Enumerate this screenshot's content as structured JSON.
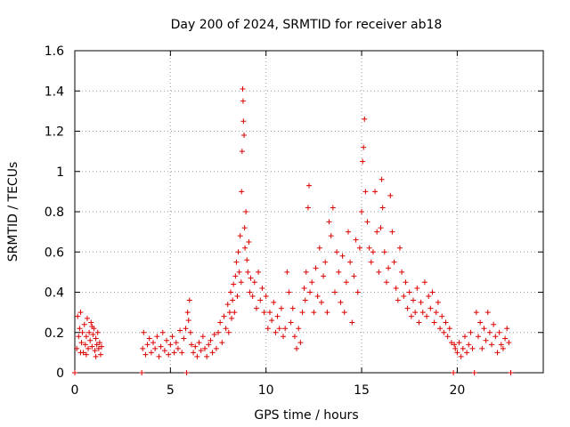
{
  "chart_data": {
    "type": "scatter",
    "title": "Day 200 of 2024, SRMTID for receiver ab18",
    "xlabel": "GPS time / hours",
    "ylabel": "SRMTID / TECUs",
    "xlim": [
      0,
      24.5
    ],
    "ylim": [
      0,
      1.6
    ],
    "grid": true,
    "marker": "plus",
    "colors": {
      "series": "#dd0000",
      "axis": "#000000",
      "grid": "#9a9a9a"
    },
    "x_ticks": [
      {
        "value": 0,
        "label": "0"
      },
      {
        "value": 5,
        "label": "5"
      },
      {
        "value": 10,
        "label": "10"
      },
      {
        "value": 15,
        "label": "15"
      },
      {
        "value": 20,
        "label": "20"
      }
    ],
    "y_ticks": [
      {
        "value": 0,
        "label": "0"
      },
      {
        "value": 0.2,
        "label": "0.2"
      },
      {
        "value": 0.4,
        "label": "0.4"
      },
      {
        "value": 0.6,
        "label": "0.6"
      },
      {
        "value": 0.8,
        "label": "0.8"
      },
      {
        "value": 1.0,
        "label": "1"
      },
      {
        "value": 1.2,
        "label": "1.2"
      },
      {
        "value": 1.4,
        "label": "1.4"
      },
      {
        "value": 1.6,
        "label": "1.6"
      }
    ],
    "series": [
      {
        "name": "SRMTID",
        "points": [
          [
            0.0,
            0.0
          ],
          [
            0.1,
            0.12
          ],
          [
            0.15,
            0.28
          ],
          [
            0.2,
            0.18
          ],
          [
            0.25,
            0.22
          ],
          [
            0.3,
            0.3
          ],
          [
            0.35,
            0.15
          ],
          [
            0.4,
            0.2
          ],
          [
            0.45,
            0.1
          ],
          [
            0.5,
            0.24
          ],
          [
            0.55,
            0.14
          ],
          [
            0.6,
            0.18
          ],
          [
            0.65,
            0.27
          ],
          [
            0.7,
            0.12
          ],
          [
            0.75,
            0.2
          ],
          [
            0.8,
            0.16
          ],
          [
            0.85,
            0.25
          ],
          [
            0.9,
            0.13
          ],
          [
            0.95,
            0.19
          ],
          [
            1.0,
            0.22
          ],
          [
            1.05,
            0.11
          ],
          [
            1.1,
            0.17
          ],
          [
            1.15,
            0.14
          ],
          [
            1.2,
            0.2
          ],
          [
            1.25,
            0.12
          ],
          [
            1.3,
            0.15
          ],
          [
            1.35,
            0.09
          ],
          [
            1.4,
            0.13
          ],
          [
            0.3,
            0.1
          ],
          [
            0.6,
            0.09
          ],
          [
            0.9,
            0.23
          ],
          [
            1.1,
            0.08
          ],
          [
            3.5,
            0.0
          ],
          [
            3.55,
            0.12
          ],
          [
            3.6,
            0.2
          ],
          [
            3.7,
            0.09
          ],
          [
            3.8,
            0.14
          ],
          [
            3.9,
            0.17
          ],
          [
            4.0,
            0.1
          ],
          [
            4.1,
            0.15
          ],
          [
            4.2,
            0.12
          ],
          [
            4.3,
            0.18
          ],
          [
            4.4,
            0.08
          ],
          [
            4.5,
            0.13
          ],
          [
            4.6,
            0.2
          ],
          [
            4.7,
            0.11
          ],
          [
            4.8,
            0.16
          ],
          [
            4.9,
            0.09
          ],
          [
            5.0,
            0.14
          ],
          [
            5.1,
            0.18
          ],
          [
            5.2,
            0.1
          ],
          [
            5.3,
            0.15
          ],
          [
            5.4,
            0.12
          ],
          [
            5.5,
            0.21
          ],
          [
            5.6,
            0.1
          ],
          [
            5.7,
            0.17
          ],
          [
            5.8,
            0.22
          ],
          [
            5.85,
            0.0
          ],
          [
            5.9,
            0.3
          ],
          [
            5.95,
            0.26
          ],
          [
            6.0,
            0.36
          ],
          [
            6.05,
            0.2
          ],
          [
            6.1,
            0.14
          ],
          [
            6.2,
            0.1
          ],
          [
            6.3,
            0.13
          ],
          [
            6.4,
            0.08
          ],
          [
            6.5,
            0.15
          ],
          [
            6.6,
            0.11
          ],
          [
            6.7,
            0.18
          ],
          [
            6.8,
            0.12
          ],
          [
            6.9,
            0.08
          ],
          [
            7.0,
            0.14
          ],
          [
            7.1,
            0.16
          ],
          [
            7.2,
            0.1
          ],
          [
            7.3,
            0.19
          ],
          [
            7.4,
            0.12
          ],
          [
            7.5,
            0.2
          ],
          [
            7.6,
            0.25
          ],
          [
            7.7,
            0.15
          ],
          [
            7.8,
            0.28
          ],
          [
            7.9,
            0.22
          ],
          [
            8.0,
            0.34
          ],
          [
            8.05,
            0.2
          ],
          [
            8.1,
            0.3
          ],
          [
            8.15,
            0.4
          ],
          [
            8.2,
            0.27
          ],
          [
            8.25,
            0.36
          ],
          [
            8.3,
            0.44
          ],
          [
            8.35,
            0.3
          ],
          [
            8.4,
            0.48
          ],
          [
            8.45,
            0.55
          ],
          [
            8.5,
            0.38
          ],
          [
            8.55,
            0.6
          ],
          [
            8.6,
            0.5
          ],
          [
            8.65,
            0.68
          ],
          [
            8.7,
            0.45
          ],
          [
            8.72,
            0.9
          ],
          [
            8.75,
            1.1
          ],
          [
            8.78,
            1.41
          ],
          [
            8.8,
            1.35
          ],
          [
            8.82,
            1.25
          ],
          [
            8.85,
            1.18
          ],
          [
            8.88,
            0.72
          ],
          [
            8.9,
            0.62
          ],
          [
            8.95,
            0.8
          ],
          [
            9.0,
            0.56
          ],
          [
            9.05,
            0.5
          ],
          [
            9.1,
            0.65
          ],
          [
            9.15,
            0.4
          ],
          [
            9.2,
            0.47
          ],
          [
            9.3,
            0.38
          ],
          [
            9.4,
            0.45
          ],
          [
            9.5,
            0.32
          ],
          [
            9.6,
            0.5
          ],
          [
            9.7,
            0.36
          ],
          [
            9.8,
            0.42
          ],
          [
            9.9,
            0.3
          ],
          [
            10.0,
            0.38
          ],
          [
            10.1,
            0.22
          ],
          [
            10.2,
            0.3
          ],
          [
            10.3,
            0.26
          ],
          [
            10.4,
            0.35
          ],
          [
            10.5,
            0.2
          ],
          [
            10.6,
            0.28
          ],
          [
            10.7,
            0.22
          ],
          [
            10.8,
            0.32
          ],
          [
            10.9,
            0.18
          ],
          [
            11.0,
            0.22
          ],
          [
            11.1,
            0.5
          ],
          [
            11.2,
            0.4
          ],
          [
            11.3,
            0.25
          ],
          [
            11.4,
            0.32
          ],
          [
            11.5,
            0.18
          ],
          [
            11.6,
            0.12
          ],
          [
            11.7,
            0.22
          ],
          [
            11.8,
            0.15
          ],
          [
            11.9,
            0.3
          ],
          [
            12.0,
            0.42
          ],
          [
            12.05,
            0.36
          ],
          [
            12.1,
            0.5
          ],
          [
            12.2,
            0.82
          ],
          [
            12.25,
            0.93
          ],
          [
            12.3,
            0.4
          ],
          [
            12.4,
            0.45
          ],
          [
            12.5,
            0.3
          ],
          [
            12.6,
            0.52
          ],
          [
            12.7,
            0.38
          ],
          [
            12.8,
            0.62
          ],
          [
            12.9,
            0.35
          ],
          [
            13.0,
            0.48
          ],
          [
            13.1,
            0.55
          ],
          [
            13.2,
            0.3
          ],
          [
            13.3,
            0.75
          ],
          [
            13.4,
            0.68
          ],
          [
            13.5,
            0.82
          ],
          [
            13.6,
            0.4
          ],
          [
            13.7,
            0.6
          ],
          [
            13.8,
            0.5
          ],
          [
            13.9,
            0.35
          ],
          [
            14.0,
            0.58
          ],
          [
            14.1,
            0.3
          ],
          [
            14.2,
            0.45
          ],
          [
            14.3,
            0.7
          ],
          [
            14.4,
            0.55
          ],
          [
            14.5,
            0.25
          ],
          [
            14.6,
            0.48
          ],
          [
            14.7,
            0.66
          ],
          [
            14.8,
            0.4
          ],
          [
            14.9,
            0.62
          ],
          [
            15.0,
            0.8
          ],
          [
            15.05,
            1.05
          ],
          [
            15.1,
            1.12
          ],
          [
            15.15,
            1.26
          ],
          [
            15.2,
            0.9
          ],
          [
            15.3,
            0.75
          ],
          [
            15.4,
            0.62
          ],
          [
            15.5,
            0.55
          ],
          [
            15.6,
            0.6
          ],
          [
            15.7,
            0.9
          ],
          [
            15.8,
            0.7
          ],
          [
            15.9,
            0.5
          ],
          [
            16.0,
            0.72
          ],
          [
            16.05,
            0.96
          ],
          [
            16.1,
            0.82
          ],
          [
            16.2,
            0.6
          ],
          [
            16.3,
            0.45
          ],
          [
            16.4,
            0.52
          ],
          [
            16.5,
            0.88
          ],
          [
            16.6,
            0.7
          ],
          [
            16.7,
            0.55
          ],
          [
            16.8,
            0.42
          ],
          [
            16.9,
            0.36
          ],
          [
            17.0,
            0.62
          ],
          [
            17.1,
            0.5
          ],
          [
            17.2,
            0.38
          ],
          [
            17.3,
            0.45
          ],
          [
            17.4,
            0.32
          ],
          [
            17.5,
            0.4
          ],
          [
            17.6,
            0.28
          ],
          [
            17.7,
            0.36
          ],
          [
            17.8,
            0.3
          ],
          [
            17.9,
            0.42
          ],
          [
            18.0,
            0.25
          ],
          [
            18.1,
            0.35
          ],
          [
            18.2,
            0.3
          ],
          [
            18.3,
            0.45
          ],
          [
            18.4,
            0.28
          ],
          [
            18.5,
            0.38
          ],
          [
            18.6,
            0.32
          ],
          [
            18.7,
            0.4
          ],
          [
            18.8,
            0.25
          ],
          [
            18.9,
            0.3
          ],
          [
            19.0,
            0.35
          ],
          [
            19.1,
            0.22
          ],
          [
            19.2,
            0.28
          ],
          [
            19.3,
            0.2
          ],
          [
            19.4,
            0.25
          ],
          [
            19.5,
            0.18
          ],
          [
            19.6,
            0.22
          ],
          [
            19.7,
            0.15
          ],
          [
            19.8,
            0.0
          ],
          [
            19.85,
            0.14
          ],
          [
            19.9,
            0.12
          ],
          [
            20.0,
            0.1
          ],
          [
            20.1,
            0.15
          ],
          [
            20.2,
            0.08
          ],
          [
            20.3,
            0.12
          ],
          [
            20.4,
            0.18
          ],
          [
            20.5,
            0.1
          ],
          [
            20.6,
            0.14
          ],
          [
            20.7,
            0.2
          ],
          [
            20.8,
            0.12
          ],
          [
            20.9,
            0.0
          ],
          [
            21.0,
            0.3
          ],
          [
            21.1,
            0.18
          ],
          [
            21.2,
            0.25
          ],
          [
            21.3,
            0.12
          ],
          [
            21.4,
            0.22
          ],
          [
            21.5,
            0.16
          ],
          [
            21.6,
            0.3
          ],
          [
            21.7,
            0.2
          ],
          [
            21.8,
            0.14
          ],
          [
            21.9,
            0.24
          ],
          [
            22.0,
            0.18
          ],
          [
            22.1,
            0.1
          ],
          [
            22.2,
            0.2
          ],
          [
            22.3,
            0.14
          ],
          [
            22.4,
            0.12
          ],
          [
            22.5,
            0.17
          ],
          [
            22.6,
            0.22
          ],
          [
            22.7,
            0.15
          ],
          [
            22.8,
            0.0
          ]
        ]
      }
    ]
  }
}
